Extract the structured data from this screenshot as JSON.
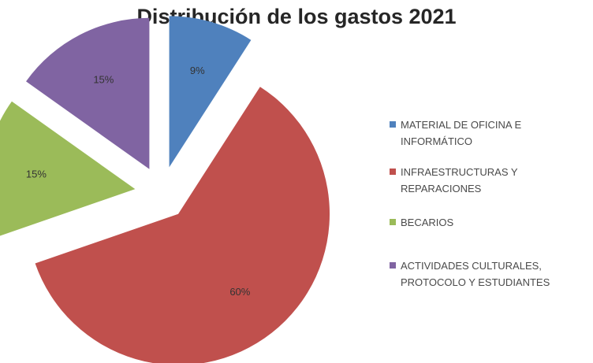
{
  "chart_data": {
    "type": "pie",
    "title": "Distribución de los gastos 2021",
    "exploded": true,
    "legend_position": "right",
    "slices": [
      {
        "label": "MATERIAL DE OFICINA E INFORMÁTICO",
        "value": 9,
        "value_label": "9%",
        "color": "#4F81BD"
      },
      {
        "label": "INFRAESTRUCTURAS Y REPARACIONES",
        "value": 60,
        "value_label": "60%",
        "color": "#C0504D"
      },
      {
        "label": "BECARIOS",
        "value": 15,
        "value_label": "15%",
        "color": "#9BBB59"
      },
      {
        "label": "ACTIVIDADES CULTURALES, PROTOCOLO Y ESTUDIANTES",
        "value": 15,
        "value_label": "15%",
        "color": "#8064A2"
      }
    ]
  }
}
